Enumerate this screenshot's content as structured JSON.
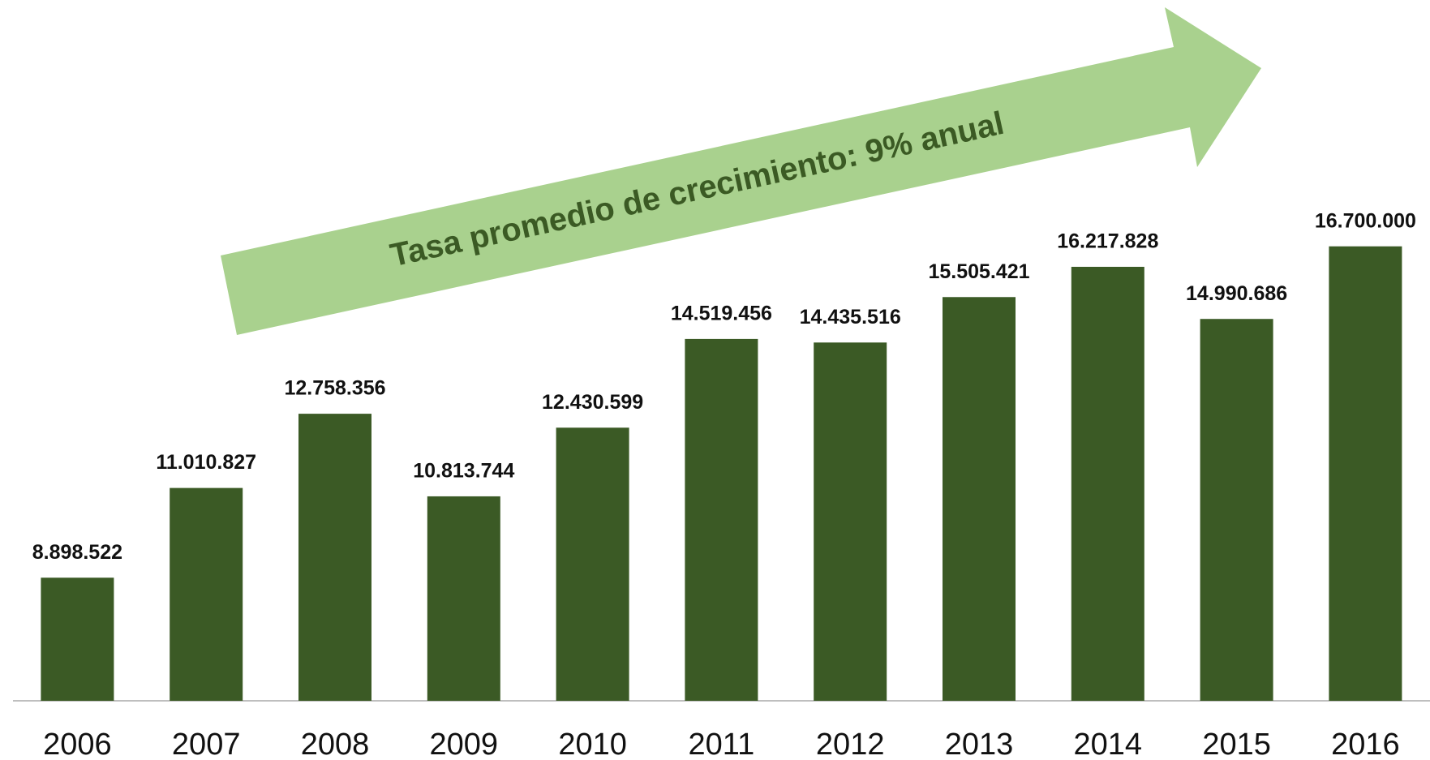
{
  "chart_data": {
    "type": "bar",
    "annotation": "Tasa promedio de crecimiento: 9%  anual",
    "categories": [
      "2006",
      "2007",
      "2008",
      "2009",
      "2010",
      "2011",
      "2012",
      "2013",
      "2014",
      "2015",
      "2016"
    ],
    "values": [
      8898522,
      11010827,
      12758356,
      10813744,
      12430599,
      14519456,
      14435516,
      15505421,
      16217828,
      14990686,
      16700000
    ],
    "value_labels": [
      "8.898.522",
      "11.010.827",
      "12.758.356",
      "10.813.744",
      "12.430.599",
      "14.519.456",
      "14.435.516",
      "15.505.421",
      "16.217.828",
      "14.990.686",
      "16.700.000"
    ],
    "color": "#3b5a25",
    "ylim": [
      6000000,
      22500000
    ]
  }
}
